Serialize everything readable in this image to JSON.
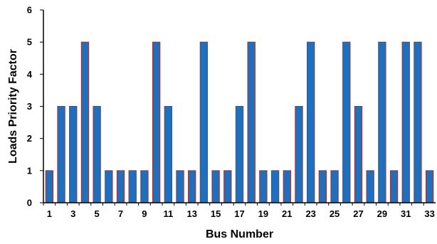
{
  "chart_data": {
    "type": "bar",
    "xlabel": "Bus Number",
    "ylabel": "Loads Priority Factor",
    "ylim": [
      0,
      6
    ],
    "yticks": [
      0,
      1,
      2,
      3,
      4,
      5,
      6
    ],
    "categories": [
      "1",
      "2",
      "3",
      "4",
      "5",
      "6",
      "7",
      "8",
      "9",
      "10",
      "11",
      "12",
      "13",
      "14",
      "15",
      "16",
      "17",
      "18",
      "19",
      "20",
      "21",
      "22",
      "23",
      "24",
      "25",
      "26",
      "27",
      "28",
      "29",
      "30",
      "31",
      "32",
      "33"
    ],
    "xtick_labels_shown": [
      "1",
      "3",
      "5",
      "7",
      "9",
      "11",
      "13",
      "15",
      "17",
      "19",
      "21",
      "23",
      "25",
      "27",
      "29",
      "31",
      "33"
    ],
    "values": [
      1,
      3,
      3,
      5,
      3,
      1,
      1,
      1,
      1,
      5,
      3,
      1,
      1,
      5,
      1,
      1,
      3,
      5,
      1,
      1,
      1,
      3,
      5,
      1,
      1,
      5,
      3,
      1,
      5,
      1,
      5,
      5,
      1
    ],
    "bar_color": "#1f6fbf",
    "bar_edge_color": "#a0342c",
    "grid": false
  }
}
